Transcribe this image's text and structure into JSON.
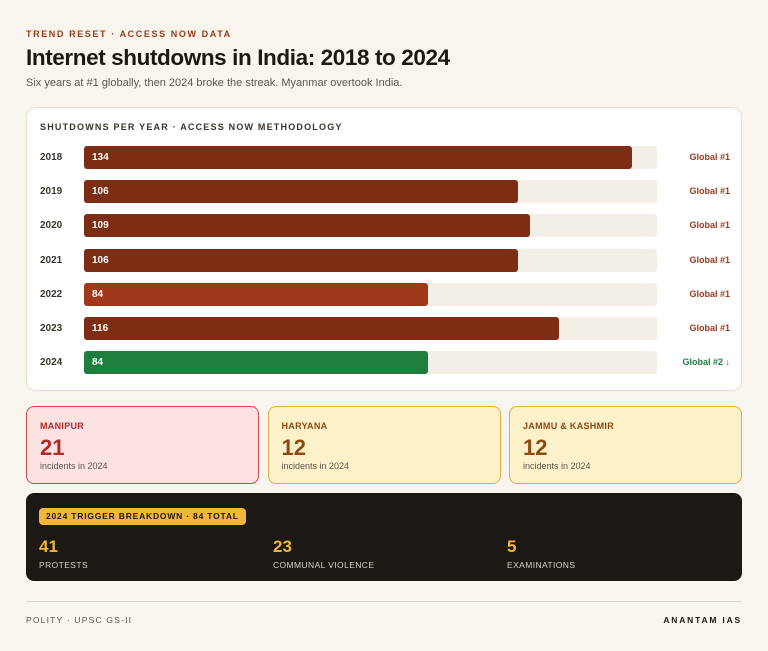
{
  "eyebrow": "TREND RESET · ACCESS NOW DATA",
  "title": "Internet shutdowns in India: 2018 to 2024",
  "subtitle": "Six years at #1 globally, then 2024 broke the streak. Myanmar overtook India.",
  "chart_data": {
    "type": "bar",
    "orientation": "horizontal",
    "title": "SHUTDOWNS PER YEAR · ACCESS NOW METHODOLOGY",
    "categories": [
      "2018",
      "2019",
      "2020",
      "2021",
      "2022",
      "2023",
      "2024"
    ],
    "values": [
      134,
      106,
      109,
      106,
      84,
      116,
      84
    ],
    "rank_labels": [
      "Global #1",
      "Global #1",
      "Global #1",
      "Global #1",
      "Global #1",
      "Global #1",
      "Global #2 ↓"
    ],
    "bar_colors": [
      "#7c2d14",
      "#7c2d14",
      "#7c2d14",
      "#7c2d14",
      "#a0391a",
      "#7c2d14",
      "#1f7d3e"
    ],
    "rank_colors": [
      "#9a3a1c",
      "#9a3a1c",
      "#9a3a1c",
      "#9a3a1c",
      "#9a3a1c",
      "#9a3a1c",
      "#1f7d3e"
    ],
    "xlim": [
      0,
      140
    ],
    "grid": false,
    "legend": "none"
  },
  "states": [
    {
      "name": "MANIPUR",
      "count": "21",
      "sub": "incidents in 2024",
      "bg": "#fde2e2",
      "border": "#c94b4b",
      "name_color": "#b02a2a",
      "count_color": "#b02a2a"
    },
    {
      "name": "HARYANA",
      "count": "12",
      "sub": "incidents in 2024",
      "bg": "#fdf1c9",
      "border": "#dfae4e",
      "name_color": "#8a4a12",
      "count_color": "#8a4a12"
    },
    {
      "name": "JAMMU & KASHMIR",
      "count": "12",
      "sub": "incidents in 2024",
      "bg": "#fdf1c9",
      "border": "#dfae4e",
      "name_color": "#8a4a12",
      "count_color": "#8a4a12"
    }
  ],
  "triggers": {
    "badge": "2024 TRIGGER BREAKDOWN · 84 TOTAL",
    "items": [
      {
        "count": "41",
        "label": "PROTESTS"
      },
      {
        "count": "23",
        "label": "COMMUNAL VIOLENCE"
      },
      {
        "count": "5",
        "label": "EXAMINATIONS"
      }
    ]
  },
  "footer": {
    "left": "POLITY · UPSC GS-II",
    "right": "ANANTAM IAS"
  }
}
